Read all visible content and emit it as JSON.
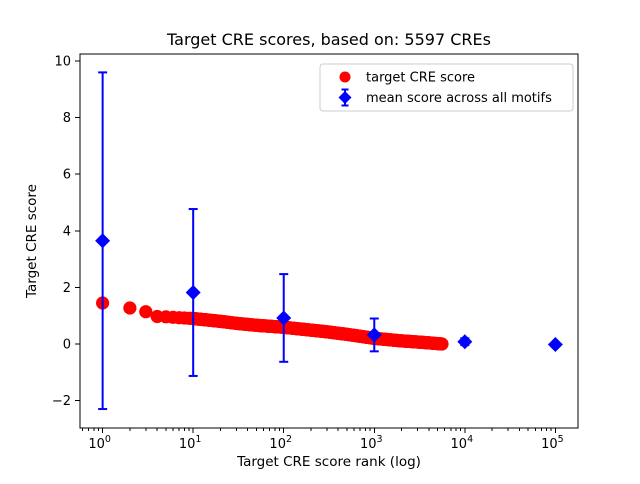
{
  "figure": {
    "background": "#ffffff",
    "frame_color": "#000000"
  },
  "chart_data": {
    "type": "scatter",
    "title": "Target CRE scores, based on: 5597 CREs",
    "xlabel": "Target CRE score rank (log)",
    "ylabel": "Target CRE score",
    "x_scale": "log10",
    "xlim_log10": [
      -0.25,
      5.25
    ],
    "ylim": [
      -2.97,
      10.25
    ],
    "grid": false,
    "x_tick_base": "10",
    "x_tick_exponents": [
      0,
      1,
      2,
      3,
      4,
      5
    ],
    "y_ticks": [
      {
        "value": -2,
        "label": "−2"
      },
      {
        "value": 0,
        "label": "0"
      },
      {
        "value": 2,
        "label": "2"
      },
      {
        "value": 4,
        "label": "4"
      },
      {
        "value": 6,
        "label": "6"
      },
      {
        "value": 8,
        "label": "8"
      },
      {
        "value": 10,
        "label": "10"
      }
    ],
    "series": [
      {
        "name": "target CRE score",
        "marker": "circle",
        "color": "#ff0000",
        "marker_radius_px": 6.6,
        "n_points": 5597,
        "rank_range": [
          1,
          5597
        ],
        "points_note": "5597 red dots at ranks 1..5597; y-value decays with rank; anchors interpolated linearly in log10(rank)",
        "anchors": [
          [
            1,
            1.45
          ],
          [
            2,
            1.27
          ],
          [
            3,
            1.14
          ],
          [
            4,
            0.97
          ],
          [
            5,
            0.96
          ],
          [
            7,
            0.93
          ],
          [
            10,
            0.9
          ],
          [
            20,
            0.8
          ],
          [
            30,
            0.73
          ],
          [
            50,
            0.66
          ],
          [
            100,
            0.59
          ],
          [
            200,
            0.49
          ],
          [
            300,
            0.43
          ],
          [
            500,
            0.34
          ],
          [
            1000,
            0.2
          ],
          [
            2000,
            0.11
          ],
          [
            3000,
            0.07
          ],
          [
            4000,
            0.04
          ],
          [
            5597,
            0.0
          ]
        ]
      },
      {
        "name": "mean score across all motifs",
        "marker": "diamond",
        "color": "#0000ff",
        "marker_half_px": 7.5,
        "errorbar": true,
        "points": [
          {
            "x": 1,
            "y": 3.65,
            "err": 5.95
          },
          {
            "x": 10,
            "y": 1.82,
            "err": 2.95
          },
          {
            "x": 100,
            "y": 0.92,
            "err": 1.55
          },
          {
            "x": 1000,
            "y": 0.32,
            "err": 0.58
          },
          {
            "x": 10000,
            "y": 0.08,
            "err": 0.12
          },
          {
            "x": 100000,
            "y": -0.02,
            "err": 0.02
          }
        ]
      }
    ],
    "legend": {
      "position": "upper right",
      "border_color": "#cccccc",
      "background": "#ffffff",
      "entries": [
        "target CRE score",
        "mean score across all motifs"
      ]
    }
  }
}
